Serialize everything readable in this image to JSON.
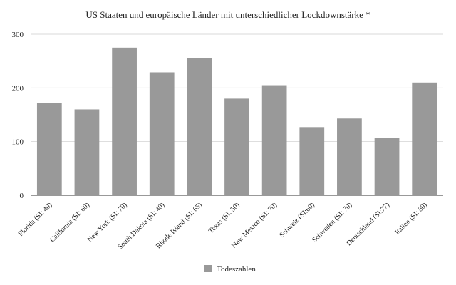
{
  "chart_data": {
    "type": "bar",
    "title": "US Staaten und europäische Länder mit unterschiedlicher Lockdownstärke *",
    "xlabel": "",
    "ylabel": "",
    "categories": [
      "Florida (SI: 40)",
      "California (SI: 60)",
      "New York (SI: 70)",
      "South Dakota (SI: 40)",
      "Rhode Island (SI: 65)",
      "Texas (SI: 50)",
      "New Mexico (SI: 70)",
      "Schweiz (SI:60)",
      "Schweden (SI: 70)",
      "Deutschland (SI:77)",
      "Italien (SI: 80)"
    ],
    "series": [
      {
        "name": "Todeszahlen",
        "values": [
          172,
          160,
          275,
          229,
          256,
          180,
          205,
          127,
          143,
          107,
          210
        ],
        "color": "#999999"
      }
    ],
    "ylim": [
      0,
      300
    ],
    "yticks": [
      0,
      100,
      200,
      300
    ],
    "grid": true,
    "legend_position": "bottom"
  }
}
